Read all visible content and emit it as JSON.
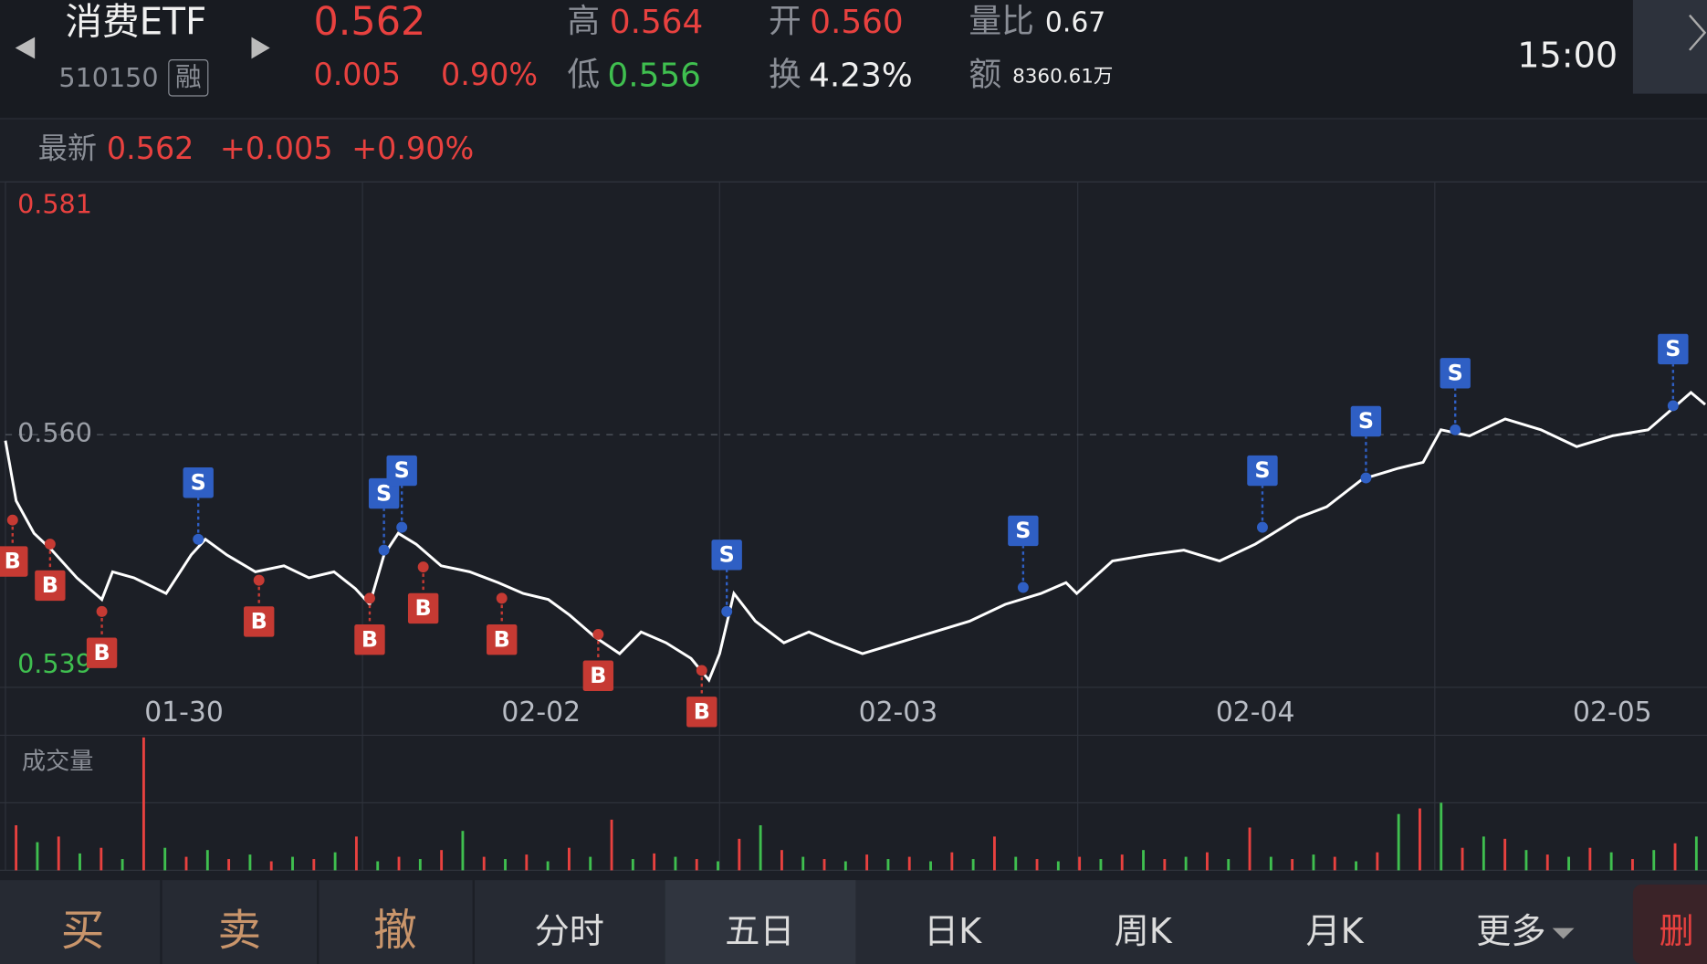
{
  "header": {
    "name": "消费ETF",
    "code": "510150",
    "tag": "融",
    "price": "0.562",
    "change": "0.005",
    "pct": "0.90%",
    "high_label": "高",
    "high": "0.564",
    "low_label": "低",
    "low": "0.556",
    "open_label": "开",
    "open": "0.560",
    "turnover_label": "换",
    "turnover": "4.23%",
    "vol_ratio_label": "量比",
    "vol_ratio": "0.67",
    "amount_label": "额",
    "amount": "8360.61万",
    "time": "15:00"
  },
  "latest": {
    "label": "最新",
    "price": "0.562",
    "change": "+0.005",
    "pct": "+0.90%"
  },
  "chart_data": {
    "type": "line",
    "color": "#ffffff",
    "x": [
      0,
      0.03,
      0.08,
      0.13,
      0.2,
      0.27,
      0.3,
      0.36,
      0.45,
      0.52,
      0.56,
      0.62,
      0.7,
      0.78,
      0.85,
      0.92,
      0.98,
      1.02,
      1.06,
      1.1,
      1.15,
      1.22,
      1.3,
      1.38,
      1.45,
      1.52,
      1.58,
      1.65,
      1.72,
      1.78,
      1.85,
      1.92,
      1.97,
      2.0,
      2.04,
      2.1,
      2.18,
      2.25,
      2.32,
      2.4,
      2.5,
      2.6,
      2.7,
      2.8,
      2.9,
      2.97,
      3.0,
      3.1,
      3.2,
      3.3,
      3.4,
      3.5,
      3.55,
      3.62,
      3.7,
      3.8,
      3.9,
      3.97,
      4.02,
      4.1,
      4.2,
      4.3,
      4.4,
      4.5,
      4.6,
      4.67,
      4.72,
      4.76
    ],
    "values": [
      0.5595,
      0.5545,
      0.5518,
      0.5504,
      0.5481,
      0.5463,
      0.5486,
      0.5481,
      0.5468,
      0.55,
      0.5513,
      0.55,
      0.5486,
      0.5491,
      0.5481,
      0.5486,
      0.5472,
      0.5459,
      0.55,
      0.5518,
      0.5509,
      0.5491,
      0.5486,
      0.5477,
      0.5468,
      0.5463,
      0.545,
      0.5432,
      0.5418,
      0.5436,
      0.5427,
      0.5414,
      0.5396,
      0.5418,
      0.5468,
      0.5445,
      0.5427,
      0.5436,
      0.5427,
      0.5418,
      0.5427,
      0.5436,
      0.5445,
      0.5459,
      0.5468,
      0.5477,
      0.5468,
      0.5495,
      0.55,
      0.5504,
      0.5495,
      0.5509,
      0.5518,
      0.5531,
      0.554,
      0.5563,
      0.5572,
      0.5577,
      0.5604,
      0.5599,
      0.5613,
      0.5604,
      0.559,
      0.5599,
      0.5604,
      0.5622,
      0.5635,
      0.5625
    ],
    "xlim": [
      0,
      4.765
    ],
    "xticks": [
      {
        "value": 0.5,
        "label": "01-30"
      },
      {
        "value": 1.5,
        "label": "02-02"
      },
      {
        "value": 2.5,
        "label": "02-03"
      },
      {
        "value": 3.5,
        "label": "02-04"
      },
      {
        "value": 4.5,
        "label": "02-05"
      }
    ],
    "ylim": [
      0.539,
      0.581
    ],
    "yticks": [
      0.539,
      {
        "value": 0.56,
        "label": "0.560"
      },
      0.581
    ],
    "ytick_colors": [
      "#3fbf4f",
      "#9a9ea6",
      "#e8413f"
    ],
    "grid": true,
    "markers": [
      {
        "label": "B",
        "x": 0.02,
        "value": 0.5529
      },
      {
        "label": "B",
        "x": 0.125,
        "value": 0.5509
      },
      {
        "label": "B",
        "x": 0.27,
        "value": 0.5453
      },
      {
        "label": "S",
        "x": 0.54,
        "value": 0.5513
      },
      {
        "label": "B",
        "x": 0.71,
        "value": 0.5479
      },
      {
        "label": "B",
        "x": 1.02,
        "value": 0.5464
      },
      {
        "label": "S",
        "x": 1.06,
        "value": 0.5504
      },
      {
        "label": "S",
        "x": 1.11,
        "value": 0.5523
      },
      {
        "label": "B",
        "x": 1.17,
        "value": 0.549
      },
      {
        "label": "B",
        "x": 1.39,
        "value": 0.5464
      },
      {
        "label": "B",
        "x": 1.66,
        "value": 0.5434
      },
      {
        "label": "B",
        "x": 1.95,
        "value": 0.5404
      },
      {
        "label": "S",
        "x": 2.02,
        "value": 0.5453
      },
      {
        "label": "S",
        "x": 2.85,
        "value": 0.5473
      },
      {
        "label": "S",
        "x": 3.52,
        "value": 0.5523
      },
      {
        "label": "S",
        "x": 3.81,
        "value": 0.5564
      },
      {
        "label": "S",
        "x": 4.06,
        "value": 0.5604
      },
      {
        "label": "S",
        "x": 4.67,
        "value": 0.5624
      }
    ]
  },
  "volume": {
    "title": "成交量",
    "colors": [
      "#e8413f",
      "#3fbf4f"
    ],
    "values": [
      40,
      25,
      30,
      15,
      20,
      10,
      118,
      20,
      12,
      18,
      10,
      14,
      8,
      12,
      10,
      16,
      30,
      8,
      12,
      10,
      18,
      35,
      12,
      10,
      14,
      8,
      20,
      12,
      45,
      10,
      15,
      12,
      10,
      8,
      28,
      40,
      18,
      12,
      10,
      8,
      14,
      10,
      12,
      8,
      16,
      10,
      30,
      12,
      10,
      8,
      12,
      10,
      14,
      18,
      10,
      12,
      16,
      10,
      38,
      12,
      10,
      14,
      12,
      8,
      16,
      50,
      55,
      60,
      20,
      30,
      28,
      18,
      14,
      12,
      20,
      16,
      10,
      18,
      24,
      30
    ]
  },
  "tabs": [
    "买",
    "卖",
    "撤",
    "分时",
    "五日",
    "日K",
    "周K",
    "月K",
    "更多",
    "删"
  ]
}
